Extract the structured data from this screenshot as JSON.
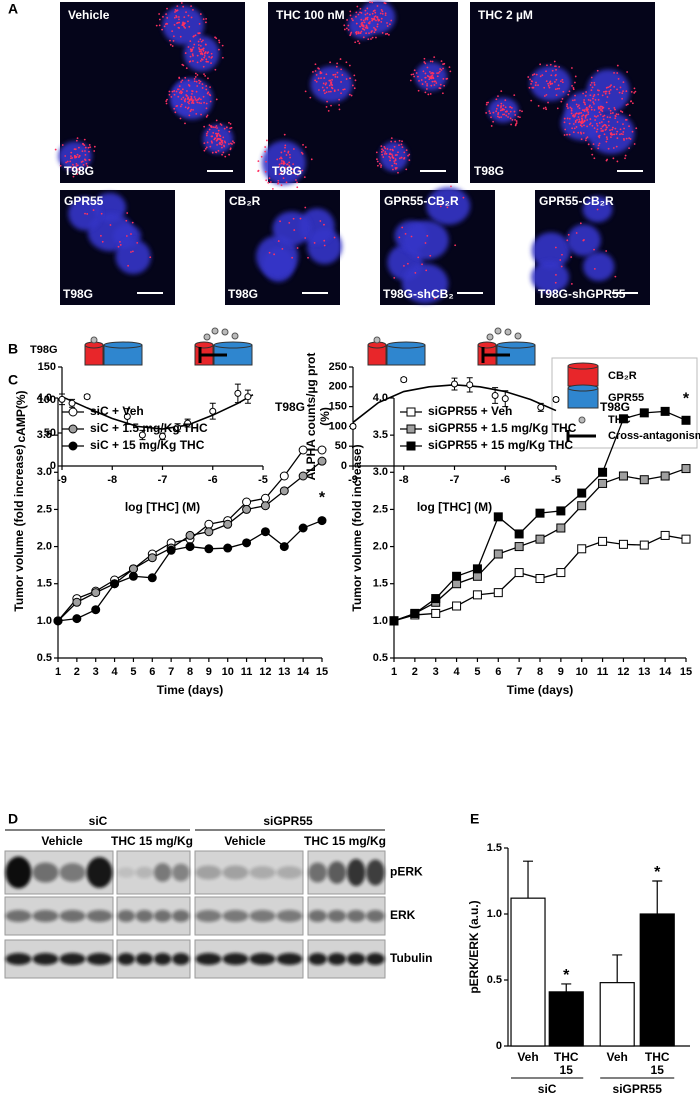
{
  "panel_labels": [
    "A",
    "B",
    "C",
    "D",
    "E"
  ],
  "micrographs": {
    "top": [
      {
        "label": "Vehicle",
        "cell_line": "T98G"
      },
      {
        "label": "THC 100 nM",
        "cell_line": "T98G"
      },
      {
        "label": "THC 2 µM",
        "cell_line": "T98G"
      }
    ],
    "bottom": [
      {
        "label": "GPR55",
        "cell_line": "T98G"
      },
      {
        "label": "CB₂R",
        "cell_line": "T98G"
      },
      {
        "label": "GPR55-CB₂R",
        "cell_line": "T98G-shCB₂"
      },
      {
        "label": "GPR55-CB₂R",
        "cell_line": "T98G-shGPR55"
      }
    ]
  },
  "panel_b_title": "T98G",
  "schematic_legend": [
    "CB₂R",
    "GPR55",
    "THC",
    "Cross-antagonism"
  ],
  "blot": {
    "groups": [
      "siC",
      "siGPR55"
    ],
    "treatments": [
      "Vehicle",
      "THC 15 mg/Kg",
      "Vehicle",
      "THC 15 mg/Kg"
    ],
    "rows": [
      "pERK",
      "ERK",
      "Tubulin"
    ]
  },
  "chart_data": [
    {
      "type": "scatter",
      "ylabel": "cAMP(%)",
      "xlabel": "log [THC] (M)",
      "x": [
        -9,
        -8.8,
        -8.5,
        -7.7,
        -7.4,
        -7,
        -6.7,
        -6.5,
        -6,
        -5.5,
        -5.3
      ],
      "values": [
        101,
        95,
        105,
        75,
        47,
        45,
        58,
        65,
        83,
        110,
        105
      ],
      "errors": [
        8,
        6,
        3,
        12,
        7,
        5,
        6,
        6,
        12,
        14,
        10
      ],
      "fit": {
        "x": [
          -9,
          -8.5,
          -8,
          -7.5,
          -7,
          -6.5,
          -6,
          -5.5,
          -5.2
        ],
        "values": [
          105,
          88,
          72,
          60,
          56,
          62,
          77,
          95,
          108
        ]
      },
      "color": "#ffffff",
      "xlim": [
        -9,
        -5
      ],
      "xticks": [
        -9,
        -8,
        -7,
        -6,
        -5
      ],
      "ylim": [
        0,
        150
      ],
      "yticks": [
        0,
        50,
        100,
        150
      ]
    },
    {
      "type": "scatter",
      "ylabel": [
        "ALPHA counts/µg prot",
        "(%)"
      ],
      "xlabel": "log [THC] (M)",
      "x": [
        -9,
        -8,
        -7,
        -6.7,
        -6.2,
        -6,
        -5.3,
        -5
      ],
      "values": [
        100,
        218,
        207,
        205,
        178,
        170,
        148,
        168
      ],
      "errors": [
        5,
        5,
        15,
        18,
        20,
        20,
        10,
        5
      ],
      "fit": {
        "x": [
          -9,
          -8.5,
          -8,
          -7.5,
          -7,
          -6.5,
          -6,
          -5.5,
          -5
        ],
        "values": [
          110,
          160,
          188,
          200,
          205,
          200,
          188,
          168,
          140
        ]
      },
      "color": "#ffffff",
      "xlim": [
        -9,
        -5
      ],
      "xticks": [
        -9,
        -8,
        -7,
        -6,
        -5
      ],
      "ylim": [
        0,
        250
      ],
      "yticks": [
        0,
        50,
        100,
        150,
        200,
        250
      ]
    },
    {
      "type": "line",
      "title": "T98G",
      "ylabel": "Tumor volume (fold increase)",
      "xlabel": "Time (days)",
      "x": [
        1,
        2,
        3,
        4,
        5,
        6,
        7,
        8,
        9,
        10,
        11,
        12,
        13,
        14,
        15
      ],
      "series": [
        {
          "name": "siC + Veh",
          "color": "#ffffff",
          "marker": "circle",
          "values": [
            1,
            1.3,
            1.4,
            1.55,
            1.7,
            1.9,
            2.05,
            2.1,
            2.3,
            2.35,
            2.6,
            2.65,
            2.95,
            3.3,
            3.3
          ]
        },
        {
          "name": "siC + 1.5 mg/Kg THC",
          "color": "#a0a0a0",
          "marker": "circle",
          "values": [
            1,
            1.25,
            1.38,
            1.5,
            1.7,
            1.85,
            1.98,
            2.15,
            2.2,
            2.3,
            2.5,
            2.55,
            2.75,
            2.95,
            3.15
          ]
        },
        {
          "name": "siC + 15 mg/Kg THC",
          "color": "#000000",
          "marker": "circle",
          "values": [
            1,
            1.03,
            1.15,
            1.5,
            1.6,
            1.58,
            1.95,
            2.0,
            1.97,
            1.98,
            2.05,
            2.2,
            2.0,
            2.25,
            2.35
          ]
        }
      ],
      "annotations": [
        {
          "text": "*",
          "x": 15,
          "y": 2.65
        }
      ],
      "xlim": [
        1,
        15
      ],
      "xticks": [
        1,
        2,
        3,
        4,
        5,
        6,
        7,
        8,
        9,
        10,
        11,
        12,
        13,
        14,
        15
      ],
      "ylim": [
        0.5,
        4
      ],
      "yticks": [
        0.5,
        {
          "value": 1,
          "label": "1.0"
        },
        1.5,
        {
          "value": 2,
          "label": "2.0"
        },
        2.5,
        {
          "value": 3,
          "label": "3.0"
        },
        3.5,
        {
          "value": 4,
          "label": "4.0"
        }
      ]
    },
    {
      "type": "line",
      "title": "T98G",
      "ylabel": "Tumor volume (fold increase)",
      "xlabel": "Time (days)",
      "x": [
        1,
        2,
        3,
        4,
        5,
        6,
        7,
        8,
        9,
        10,
        11,
        12,
        13,
        14,
        15
      ],
      "series": [
        {
          "name": "siGPR55 + Veh",
          "color": "#ffffff",
          "marker": "square",
          "values": [
            1,
            1.08,
            1.1,
            1.2,
            1.35,
            1.38,
            1.65,
            1.57,
            1.65,
            1.97,
            2.07,
            2.03,
            2.02,
            2.15,
            2.1
          ]
        },
        {
          "name": "siGPR55 + 1.5 mg/Kg THC",
          "color": "#a0a0a0",
          "marker": "square",
          "values": [
            1,
            1.1,
            1.25,
            1.5,
            1.6,
            1.9,
            2.0,
            2.1,
            2.25,
            2.55,
            2.85,
            2.95,
            2.9,
            2.95,
            3.05
          ]
        },
        {
          "name": "siGPR55 + 15 mg/Kg THC",
          "color": "#000000",
          "marker": "square",
          "values": [
            1,
            1.1,
            1.3,
            1.6,
            1.7,
            2.4,
            2.17,
            2.45,
            2.48,
            2.72,
            3.0,
            3.72,
            3.8,
            3.82,
            3.7
          ]
        }
      ],
      "annotations": [
        {
          "text": "*",
          "x": 15,
          "y": 3.98
        }
      ],
      "xlim": [
        1,
        15
      ],
      "xticks": [
        1,
        2,
        3,
        4,
        5,
        6,
        7,
        8,
        9,
        10,
        11,
        12,
        13,
        14,
        15
      ],
      "ylim": [
        0.5,
        4
      ],
      "yticks": [
        0.5,
        {
          "value": 1,
          "label": "1.0"
        },
        1.5,
        {
          "value": 2,
          "label": "2.0"
        },
        2.5,
        {
          "value": 3,
          "label": "3.0"
        },
        3.5,
        {
          "value": 4,
          "label": "4.0"
        }
      ]
    },
    {
      "type": "bar",
      "ylabel": "pERK/ERK (a.u.)",
      "categories": [
        [
          "Veh"
        ],
        [
          "THC",
          "15"
        ],
        [
          "Veh"
        ],
        [
          "THC",
          "15"
        ]
      ],
      "groups": [
        "siC",
        "siGPR55"
      ],
      "values": [
        1.12,
        0.41,
        0.48,
        1.0
      ],
      "errors": [
        0.28,
        0.06,
        0.21,
        0.25
      ],
      "colors": [
        "#ffffff",
        "#000000",
        "#ffffff",
        "#000000"
      ],
      "significance": [
        null,
        "*",
        null,
        "*"
      ],
      "ylim": [
        0,
        1.5
      ],
      "yticks": [
        0,
        0.5,
        {
          "value": 1,
          "label": "1.0"
        },
        1.5
      ]
    }
  ]
}
